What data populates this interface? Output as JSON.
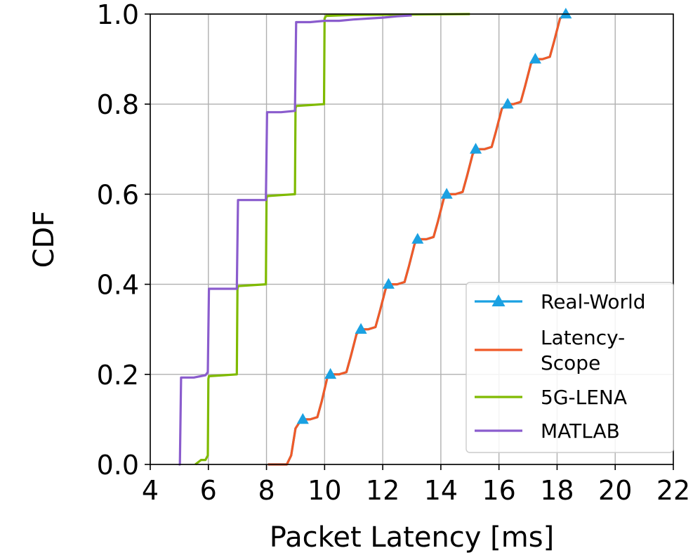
{
  "chart_data": {
    "type": "line",
    "title": "",
    "xlabel": "Packet Latency [ms]",
    "ylabel": "CDF",
    "xlim": [
      4,
      22
    ],
    "ylim": [
      0,
      1
    ],
    "xticks": [
      4,
      6,
      8,
      10,
      12,
      14,
      16,
      18,
      20,
      22
    ],
    "yticks": [
      "0.0",
      "0.2",
      "0.4",
      "0.6",
      "0.8",
      "1.0"
    ],
    "grid": true,
    "legend_position": "lower-right",
    "series": [
      {
        "name": "Real-World",
        "color": "#1ba1e2",
        "marker": "triangle",
        "x": [
          8.05,
          8.7,
          8.85,
          9.0,
          9.2,
          9.5,
          9.75,
          9.9,
          10.1,
          10.2,
          10.5,
          10.75,
          10.9,
          11.1,
          11.3,
          11.5,
          11.75,
          11.9,
          12.1,
          12.25,
          12.5,
          12.75,
          12.9,
          13.1,
          13.25,
          13.5,
          13.75,
          13.9,
          14.1,
          14.25,
          14.5,
          14.75,
          14.9,
          15.1,
          15.3,
          15.5,
          15.75,
          15.9,
          16.1,
          16.3,
          16.5,
          16.75,
          16.9,
          17.1,
          17.3,
          17.5,
          17.75,
          17.9,
          18.1,
          18.3
        ],
        "y": [
          0.0,
          0.0,
          0.02,
          0.08,
          0.1,
          0.1,
          0.105,
          0.14,
          0.195,
          0.2,
          0.2,
          0.205,
          0.24,
          0.29,
          0.3,
          0.3,
          0.305,
          0.34,
          0.39,
          0.4,
          0.4,
          0.405,
          0.44,
          0.49,
          0.5,
          0.5,
          0.505,
          0.54,
          0.59,
          0.6,
          0.6,
          0.605,
          0.64,
          0.69,
          0.7,
          0.7,
          0.705,
          0.74,
          0.79,
          0.8,
          0.8,
          0.805,
          0.84,
          0.89,
          0.9,
          0.9,
          0.905,
          0.94,
          0.99,
          1.0
        ],
        "marker_x": [
          9.25,
          10.2,
          11.25,
          12.2,
          13.2,
          14.2,
          15.2,
          16.3,
          17.25,
          18.3
        ],
        "marker_y": [
          0.1,
          0.2,
          0.3,
          0.4,
          0.5,
          0.6,
          0.7,
          0.8,
          0.9,
          1.0
        ]
      },
      {
        "name": "Latency-\nScope",
        "color": "#f05a28",
        "marker": "none",
        "x": [
          8.05,
          8.7,
          8.85,
          9.0,
          9.2,
          9.5,
          9.75,
          9.9,
          10.1,
          10.2,
          10.5,
          10.75,
          10.9,
          11.1,
          11.3,
          11.5,
          11.75,
          11.9,
          12.1,
          12.25,
          12.5,
          12.75,
          12.9,
          13.1,
          13.25,
          13.5,
          13.75,
          13.9,
          14.1,
          14.25,
          14.5,
          14.75,
          14.9,
          15.1,
          15.3,
          15.5,
          15.75,
          15.9,
          16.1,
          16.3,
          16.5,
          16.75,
          16.9,
          17.1,
          17.3,
          17.5,
          17.75,
          17.9,
          18.1,
          18.3
        ],
        "y": [
          0.0,
          0.0,
          0.02,
          0.08,
          0.1,
          0.1,
          0.105,
          0.14,
          0.195,
          0.2,
          0.2,
          0.205,
          0.24,
          0.29,
          0.3,
          0.3,
          0.305,
          0.34,
          0.39,
          0.4,
          0.4,
          0.405,
          0.44,
          0.49,
          0.5,
          0.5,
          0.505,
          0.54,
          0.59,
          0.6,
          0.6,
          0.605,
          0.64,
          0.69,
          0.7,
          0.7,
          0.705,
          0.74,
          0.79,
          0.8,
          0.8,
          0.805,
          0.84,
          0.89,
          0.9,
          0.9,
          0.905,
          0.94,
          0.99,
          1.0
        ]
      },
      {
        "name": "5G-LENA",
        "color": "#7fba00",
        "marker": "none",
        "x": [
          5.55,
          5.75,
          5.9,
          5.98,
          6.0,
          6.02,
          6.5,
          6.98,
          7.0,
          7.02,
          7.5,
          7.98,
          8.0,
          8.02,
          8.5,
          8.98,
          9.0,
          9.02,
          9.5,
          9.98,
          10.0,
          10.05,
          10.5,
          11.0,
          15.0
        ],
        "y": [
          0.0,
          0.01,
          0.01,
          0.02,
          0.19,
          0.196,
          0.198,
          0.2,
          0.39,
          0.396,
          0.398,
          0.4,
          0.59,
          0.596,
          0.598,
          0.6,
          0.79,
          0.796,
          0.798,
          0.8,
          0.99,
          0.996,
          0.997,
          0.998,
          1.0
        ]
      },
      {
        "name": "MATLAB",
        "color": "#8a5ccd",
        "marker": "none",
        "x": [
          4.98,
          5.02,
          5.06,
          5.5,
          5.9,
          5.98,
          6.02,
          6.06,
          6.5,
          6.98,
          7.02,
          7.06,
          7.5,
          7.98,
          8.02,
          8.06,
          8.5,
          8.98,
          9.02,
          9.06,
          9.5,
          10.0,
          10.5,
          11.0,
          11.5,
          12.0,
          12.5,
          13.0
        ],
        "y": [
          0.0,
          0.0,
          0.193,
          0.193,
          0.198,
          0.205,
          0.39,
          0.39,
          0.39,
          0.39,
          0.587,
          0.587,
          0.587,
          0.587,
          0.782,
          0.782,
          0.782,
          0.785,
          0.982,
          0.982,
          0.982,
          0.985,
          0.985,
          0.988,
          0.99,
          0.992,
          0.995,
          0.997
        ]
      }
    ]
  }
}
